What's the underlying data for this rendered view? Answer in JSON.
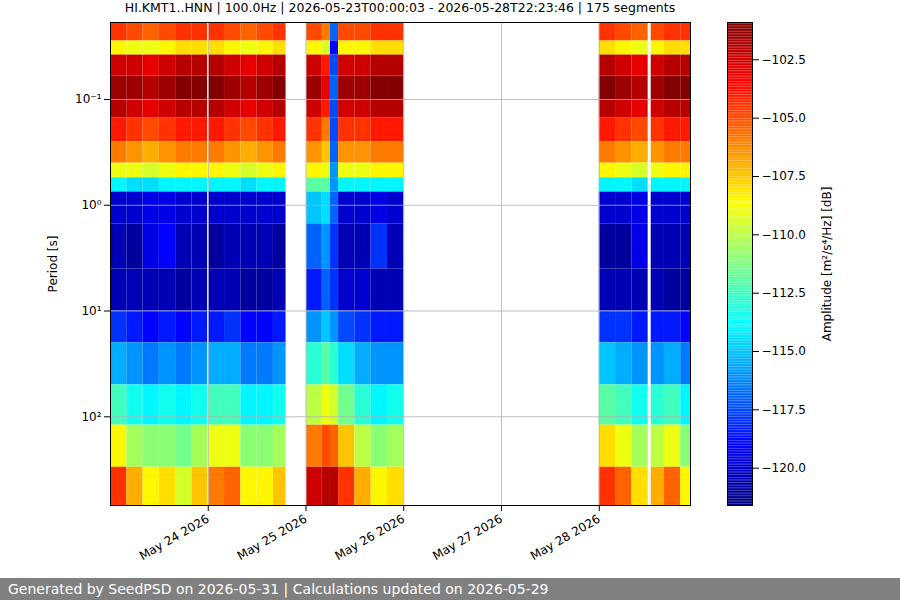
{
  "chart_data": {
    "type": "heatmap",
    "title": "HI.KMT1..HNN | 100.0Hz | 2026-05-23T00:00:03 - 2026-05-28T22:23:46 | 175 segments",
    "y_label": "Period [s]",
    "colorbar_label": "Amplitude [m²/s⁴/Hz] [dB]",
    "footer": "Generated by SeedPSD on 2026-05-31 | Calculations updated on 2026-05-29",
    "log": "y",
    "grid": true,
    "xlim": [
      "2026-05-23T00:00:03",
      "2026-05-28T22:23:46"
    ],
    "xticks": [
      {
        "value": "2026-05-24T00:00:00",
        "label": "May 24 2026"
      },
      {
        "value": "2026-05-25T00:00:00",
        "label": "May 25 2026"
      },
      {
        "value": "2026-05-26T00:00:00",
        "label": "May 26 2026"
      },
      {
        "value": "2026-05-27T00:00:00",
        "label": "May 27 2026"
      },
      {
        "value": "2026-05-28T00:00:00",
        "label": "May 28 2026"
      }
    ],
    "ylim": [
      0.0187,
      690
    ],
    "yticks": [
      {
        "value": 0.1,
        "label": "10⁻¹"
      },
      {
        "value": 1,
        "label": "10⁰"
      },
      {
        "value": 10,
        "label": "10¹"
      },
      {
        "value": 100,
        "label": "10²"
      }
    ],
    "colorbar_range": [
      -121.6,
      -100.9
    ],
    "colorbar_ticks": [
      {
        "value": -102.5,
        "label": "−102.5"
      },
      {
        "value": -105,
        "label": "−105.0"
      },
      {
        "value": -107.5,
        "label": "−107.5"
      },
      {
        "value": -110,
        "label": "−110.0"
      },
      {
        "value": -112.5,
        "label": "−112.5"
      },
      {
        "value": -115,
        "label": "−115.0"
      },
      {
        "value": -117.5,
        "label": "−117.5"
      },
      {
        "value": -120,
        "label": "−120.0"
      }
    ],
    "y_bins": [
      0.0187,
      0.028,
      0.038,
      0.06,
      0.1,
      0.15,
      0.25,
      0.4,
      0.55,
      0.75,
      1.5,
      4,
      10,
      20,
      50,
      120,
      300,
      690
    ],
    "x": [
      "2026-05-23T00:00:03",
      "2026-05-23T04:00:00",
      "2026-05-23T08:00:00",
      "2026-05-23T12:00:00",
      "2026-05-23T16:00:00",
      "2026-05-23T20:00:00",
      "2026-05-24T00:10:00",
      "2026-05-24T04:00:00",
      "2026-05-24T08:00:00",
      "2026-05-24T12:00:00",
      "2026-05-24T16:00:00",
      "2026-05-25T00:10:00",
      "2026-05-25T04:00:00",
      "2026-05-25T06:00:00",
      "2026-05-25T08:00:00",
      "2026-05-25T12:00:00",
      "2026-05-25T16:00:00",
      "2026-05-25T20:00:00",
      "2026-05-28T00:00:00",
      "2026-05-28T04:00:00",
      "2026-05-28T08:00:00",
      "2026-05-28T12:45:00",
      "2026-05-28T16:00:00",
      "2026-05-28T20:00:00"
    ],
    "x_end": [
      "2026-05-23T04:00:00",
      "2026-05-23T08:00:00",
      "2026-05-23T12:00:00",
      "2026-05-23T16:00:00",
      "2026-05-23T20:00:00",
      "2026-05-23T23:50:00",
      "2026-05-24T04:00:00",
      "2026-05-24T08:00:00",
      "2026-05-24T12:00:00",
      "2026-05-24T16:00:00",
      "2026-05-24T19:06:00",
      "2026-05-25T04:00:00",
      "2026-05-25T06:00:00",
      "2026-05-25T08:00:00",
      "2026-05-25T12:00:00",
      "2026-05-25T16:00:00",
      "2026-05-25T20:00:00",
      "2026-05-26T00:00:00",
      "2026-05-28T04:00:00",
      "2026-05-28T08:00:00",
      "2026-05-28T12:00:00",
      "2026-05-28T16:00:00",
      "2026-05-28T20:00:00",
      "2026-05-28T22:23:46"
    ],
    "values": [
      [
        -104.5,
        -108.5,
        -102.5,
        -101.5,
        -102,
        -104,
        -106,
        -109,
        -114,
        -120,
        -120.5,
        -120.5,
        -118,
        -115.5,
        -112.5,
        -108.5,
        -104.5
      ],
      [
        -105,
        -109,
        -102.5,
        -101.5,
        -102.5,
        -104.5,
        -106.5,
        -109,
        -114.5,
        -120,
        -121,
        -120.5,
        -118.5,
        -116,
        -113.5,
        -110.5,
        -107
      ],
      [
        -105.5,
        -109,
        -103,
        -102,
        -103,
        -105,
        -107,
        -109.5,
        -114.5,
        -119.5,
        -119.5,
        -120.5,
        -119,
        -116.5,
        -114,
        -111,
        -108.5
      ],
      [
        -105,
        -108.5,
        -102.5,
        -101.5,
        -102.5,
        -104.5,
        -106.5,
        -109,
        -114,
        -119.5,
        -119,
        -120.5,
        -118.5,
        -116,
        -113.5,
        -111,
        -108
      ],
      [
        -104.5,
        -108,
        -102,
        -101,
        -102,
        -104,
        -106,
        -108.5,
        -114,
        -120,
        -120.5,
        -121,
        -119,
        -116.5,
        -114,
        -111.5,
        -109.5
      ],
      [
        -104.5,
        -108,
        -102,
        -101,
        -102,
        -104,
        -106,
        -108.5,
        -114,
        -120,
        -120.5,
        -120.5,
        -118.5,
        -116,
        -113.5,
        -110.5,
        -107.5
      ],
      [
        -104.5,
        -108,
        -102,
        -101,
        -102,
        -104,
        -106,
        -108.5,
        -114,
        -120,
        -121,
        -120.5,
        -118.5,
        -115.5,
        -112.5,
        -109,
        -106
      ],
      [
        -105,
        -108.5,
        -102.5,
        -101.5,
        -102.5,
        -104.5,
        -106.5,
        -109,
        -114,
        -120,
        -120.5,
        -120.5,
        -118,
        -115.5,
        -112.5,
        -109,
        -105.5
      ],
      [
        -105.5,
        -109,
        -103,
        -102,
        -103,
        -105,
        -107,
        -109.5,
        -114.5,
        -120,
        -120.5,
        -121,
        -119,
        -116.5,
        -114,
        -111,
        -108.5
      ],
      [
        -105,
        -108.5,
        -102.5,
        -101.5,
        -102.5,
        -104.5,
        -106.5,
        -109,
        -114,
        -120,
        -120.5,
        -121,
        -119,
        -116.5,
        -114,
        -111,
        -108.5
      ],
      [
        -104.5,
        -108,
        -102,
        -101,
        -102,
        -104,
        -106,
        -108.5,
        -114,
        -120,
        -121,
        -120.5,
        -118.5,
        -116,
        -113.5,
        -110.5,
        -107.5
      ],
      [
        -105,
        -108.5,
        -102.5,
        -101.5,
        -102.5,
        -104.5,
        -106.5,
        -108.5,
        -112,
        -115,
        -117,
        -118.5,
        -116,
        -113,
        -110,
        -106,
        -102.5
      ],
      [
        -106,
        -109.5,
        -104,
        -103,
        -104,
        -106,
        -107.5,
        -109,
        -112,
        -114.5,
        -116,
        -117,
        -115,
        -112,
        -109,
        -105,
        -102
      ],
      [
        -117,
        -119,
        -117.5,
        -117,
        -117.5,
        -117.5,
        -117,
        -116,
        -116,
        -117,
        -118,
        -118,
        -116,
        -113,
        -109.5,
        -105.5,
        -102
      ],
      [
        -105,
        -108.5,
        -102.5,
        -101.5,
        -102.5,
        -104.5,
        -106.5,
        -109,
        -114,
        -120,
        -120.5,
        -120,
        -117.5,
        -114.5,
        -111.5,
        -107.5,
        -104.5
      ],
      [
        -105,
        -108.5,
        -102.5,
        -101.5,
        -102.5,
        -104.5,
        -106.5,
        -109,
        -114,
        -120,
        -120.5,
        -120,
        -118,
        -115.5,
        -113,
        -110,
        -107
      ],
      [
        -104.5,
        -108,
        -102,
        -101,
        -102,
        -104,
        -106,
        -108.5,
        -114,
        -119.5,
        -118,
        -120.5,
        -118.5,
        -116,
        -114,
        -111,
        -108.5
      ],
      [
        -104.5,
        -108,
        -102,
        -101,
        -102,
        -104,
        -106,
        -108.5,
        -114,
        -120,
        -120.5,
        -120.5,
        -118.5,
        -116,
        -113.5,
        -110.5,
        -108
      ],
      [
        -104.5,
        -108,
        -102,
        -101,
        -102,
        -104,
        -106,
        -108.5,
        -114,
        -120,
        -121,
        -120.5,
        -118,
        -115,
        -112,
        -108,
        -104.5
      ],
      [
        -105,
        -108.5,
        -102.5,
        -101.5,
        -102.5,
        -104.5,
        -106.5,
        -109,
        -114,
        -120,
        -121,
        -120.5,
        -118,
        -115.5,
        -112.5,
        -109,
        -105.5
      ],
      [
        -105.5,
        -109,
        -103,
        -102,
        -103,
        -105,
        -107,
        -109.5,
        -114.5,
        -119.5,
        -119.5,
        -120.5,
        -118.5,
        -116,
        -113.5,
        -110.5,
        -108
      ],
      [
        -105,
        -108.5,
        -102.5,
        -101.5,
        -102.5,
        -104.5,
        -106.5,
        -109,
        -114,
        -120,
        -120.5,
        -120.5,
        -118.5,
        -116,
        -113,
        -110,
        -107
      ],
      [
        -104.5,
        -108,
        -102,
        -101,
        -102,
        -104,
        -106,
        -108.5,
        -114,
        -120,
        -120.5,
        -121,
        -118.5,
        -115.5,
        -112.5,
        -109,
        -105.5
      ],
      [
        -104.5,
        -108,
        -102,
        -101,
        -102,
        -104,
        -106,
        -108.5,
        -114,
        -120,
        -120.5,
        -121,
        -119,
        -116.5,
        -114,
        -111,
        -108.5
      ]
    ]
  }
}
